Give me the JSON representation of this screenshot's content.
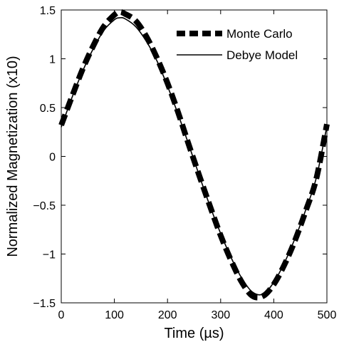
{
  "chart_data": {
    "type": "line",
    "title": "",
    "xlabel": "Time (µs)",
    "ylabel": "Normalized Magnetization (x10)",
    "xlim": [
      0,
      500
    ],
    "ylim": [
      -1.5,
      1.5
    ],
    "x_ticks": [
      0,
      100,
      200,
      300,
      400,
      500
    ],
    "x_tick_labels": [
      "0",
      "100",
      "200",
      "300",
      "400",
      "500"
    ],
    "y_ticks": [
      -1.5,
      -1,
      -0.5,
      0,
      0.5,
      1,
      1.5
    ],
    "y_tick_labels": [
      "−1.5",
      "−1",
      "−0.5",
      "0",
      "0.5",
      "1",
      "1.5"
    ],
    "grid": false,
    "legend_position": "top-right",
    "x": [
      0,
      20,
      40,
      60,
      80,
      100,
      110,
      120,
      140,
      160,
      180,
      200,
      220,
      240,
      260,
      280,
      300,
      320,
      340,
      360,
      380,
      400,
      420,
      440,
      460,
      480,
      500
    ],
    "series": [
      {
        "name": "Monte Carlo",
        "style": "dashed-thick",
        "color": "#000000",
        "values": [
          0.32,
          0.61,
          0.89,
          1.13,
          1.33,
          1.45,
          1.48,
          1.46,
          1.39,
          1.23,
          1.01,
          0.75,
          0.45,
          0.12,
          -0.2,
          -0.51,
          -0.81,
          -1.07,
          -1.29,
          -1.43,
          -1.43,
          -1.31,
          -1.11,
          -0.86,
          -0.56,
          -0.23,
          0.33
        ]
      },
      {
        "name": "Debye Model",
        "style": "solid-thin",
        "color": "#000000",
        "values": [
          0.3,
          0.6,
          0.87,
          1.1,
          1.29,
          1.4,
          1.42,
          1.41,
          1.33,
          1.18,
          0.98,
          0.72,
          0.43,
          0.12,
          -0.2,
          -0.51,
          -0.79,
          -1.04,
          -1.25,
          -1.39,
          -1.41,
          -1.29,
          -1.09,
          -0.84,
          -0.55,
          -0.22,
          0.31
        ]
      }
    ]
  }
}
